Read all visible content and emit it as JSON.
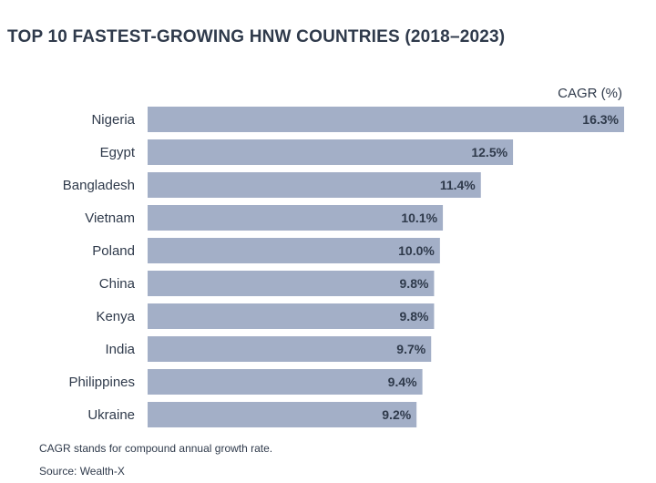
{
  "header": {
    "title": "TOP 10 FASTEST-GROWING HNW COUNTRIES (2018–2023)"
  },
  "footer": {
    "note": "CAGR stands for compound annual growth rate.",
    "source": "Source: Wealth-X"
  },
  "colors": {
    "bar": "#a3afc7",
    "text": "#2f3a4b"
  },
  "chart_data": {
    "type": "bar",
    "orientation": "horizontal",
    "title": "TOP 10 FASTEST-GROWING HNW COUNTRIES (2018–2023)",
    "value_header": "CAGR (%)",
    "categories": [
      "Nigeria",
      "Egypt",
      "Bangladesh",
      "Vietnam",
      "Poland",
      "China",
      "Kenya",
      "India",
      "Philippines",
      "Ukraine"
    ],
    "values": [
      16.3,
      12.5,
      11.4,
      10.1,
      10.0,
      9.8,
      9.8,
      9.7,
      9.4,
      9.2
    ],
    "value_labels": [
      "16.3%",
      "12.5%",
      "11.4%",
      "10.1%",
      "10.0%",
      "9.8%",
      "9.8%",
      "9.7%",
      "9.4%",
      "9.2%"
    ],
    "xlim": [
      0,
      16.3
    ],
    "grid": false,
    "legend": "none"
  }
}
